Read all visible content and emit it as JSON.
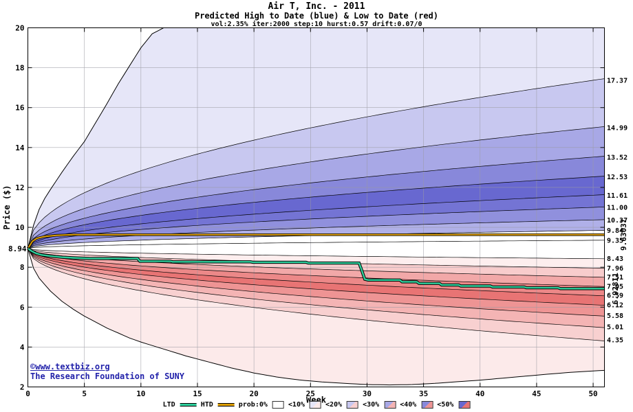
{
  "header": {
    "title": "Air T, Inc. - 2011",
    "subtitle": "Predicted High to Date (blue) &  Low to Date (red)",
    "params": "vol:2.35% iter:2000 step:10 hurst:0.57 drift:0.07/0"
  },
  "watermark": {
    "line1": "©www.textbiz.org",
    "line2": "The Research Foundation of SUNY",
    "color": "#2222aa"
  },
  "chart_data": {
    "type": "area",
    "title": "Air T, Inc. - 2011",
    "subtitle": "Predicted High to Date (blue) & Low to Date (red)",
    "xlabel": "Week",
    "ylabel": "Price ($)",
    "xlim": [
      0,
      51
    ],
    "ylim": [
      2,
      20
    ],
    "xticks": [
      0,
      5,
      10,
      15,
      20,
      25,
      30,
      35,
      40,
      45,
      50
    ],
    "yticks": [
      2,
      4,
      6,
      8,
      10,
      12,
      14,
      16,
      18,
      20
    ],
    "grid": true,
    "start_price": 8.94,
    "start_label": "8.94",
    "spread_exponent": 0.48,
    "high_boundaries": [
      {
        "end": 9.35,
        "label": "9.35"
      },
      {
        "end": 9.84,
        "label": "9.84"
      },
      {
        "end": 10.37,
        "label": "10.37"
      },
      {
        "end": 11.0,
        "label": "11.00"
      },
      {
        "end": 11.61,
        "label": "11.61"
      },
      {
        "end": 12.53,
        "label": "12.53"
      },
      {
        "end": 13.52,
        "label": "13.52"
      },
      {
        "end": 14.99,
        "label": "14.99"
      },
      {
        "end": 17.37,
        "label": "17.37"
      }
    ],
    "high_band_colors": [
      "#ffffff",
      "#b0b0e8",
      "#9090dd",
      "#7474d4",
      "#6868d0",
      "#8888da",
      "#a8a8e6",
      "#c8c8f0",
      "#e6e6f8"
    ],
    "high_envelope": [
      [
        0,
        8.94
      ],
      [
        0.5,
        10.1
      ],
      [
        1,
        10.9
      ],
      [
        1.5,
        11.45
      ],
      [
        2,
        11.9
      ],
      [
        3,
        12.75
      ],
      [
        4,
        13.55
      ],
      [
        5,
        14.3
      ],
      [
        6,
        15.25
      ],
      [
        7,
        16.2
      ],
      [
        8,
        17.2
      ],
      [
        9,
        18.1
      ],
      [
        10,
        19.0
      ],
      [
        11,
        19.7
      ],
      [
        12,
        20.0
      ],
      [
        51,
        20.0
      ]
    ],
    "low_boundaries": [
      {
        "end": 8.43,
        "label": "8.43"
      },
      {
        "end": 7.96,
        "label": "7.96"
      },
      {
        "end": 7.51,
        "label": "7.51"
      },
      {
        "end": 7.05,
        "label": "7.05"
      },
      {
        "end": 6.59,
        "label": "6.59"
      },
      {
        "end": 6.12,
        "label": "6.12"
      },
      {
        "end": 5.58,
        "label": "5.58"
      },
      {
        "end": 5.01,
        "label": "5.01"
      },
      {
        "end": 4.35,
        "label": "4.35"
      }
    ],
    "low_band_colors": [
      "#fdeeee",
      "#f8cccc",
      "#f2a8a8",
      "#ec8888",
      "#e87474",
      "#ee9494",
      "#f4b4b4",
      "#f8d0d0",
      "#fceaea"
    ],
    "low_envelope": [
      [
        0,
        8.94
      ],
      [
        0.5,
        7.95
      ],
      [
        1,
        7.45
      ],
      [
        2,
        6.8
      ],
      [
        3,
        6.3
      ],
      [
        4,
        5.9
      ],
      [
        5,
        5.55
      ],
      [
        6,
        5.25
      ],
      [
        7,
        4.95
      ],
      [
        8,
        4.7
      ],
      [
        9,
        4.45
      ],
      [
        10,
        4.25
      ],
      [
        12,
        3.9
      ],
      [
        14,
        3.55
      ],
      [
        16,
        3.25
      ],
      [
        18,
        2.95
      ],
      [
        20,
        2.7
      ],
      [
        22,
        2.5
      ],
      [
        24,
        2.35
      ],
      [
        26,
        2.25
      ],
      [
        28,
        2.18
      ],
      [
        30,
        2.12
      ],
      [
        32,
        2.1
      ],
      [
        34,
        2.12
      ],
      [
        36,
        2.18
      ],
      [
        38,
        2.26
      ],
      [
        40,
        2.34
      ],
      [
        42,
        2.44
      ],
      [
        44,
        2.54
      ],
      [
        46,
        2.64
      ],
      [
        48,
        2.73
      ],
      [
        50,
        2.8
      ],
      [
        51,
        2.83
      ]
    ],
    "htd": {
      "label": "HTD",
      "color": "#dfa000",
      "end_label": "9.63037",
      "end_label_color": "#0aa00a",
      "points": [
        [
          0,
          8.94
        ],
        [
          0.4,
          9.3
        ],
        [
          0.8,
          9.45
        ],
        [
          1.5,
          9.54
        ],
        [
          2.5,
          9.6
        ],
        [
          4,
          9.63
        ],
        [
          51,
          9.63
        ]
      ]
    },
    "ltd": {
      "label": "LTD",
      "color": "#2ecf9c",
      "end_label": "6.92811",
      "end_label_color": "#0aa00a",
      "points": [
        [
          0,
          8.94
        ],
        [
          0.3,
          8.82
        ],
        [
          0.7,
          8.7
        ],
        [
          1.2,
          8.62
        ],
        [
          2,
          8.56
        ],
        [
          3,
          8.5
        ],
        [
          4,
          8.47
        ],
        [
          5.5,
          8.44
        ],
        [
          9.7,
          8.44
        ],
        [
          9.9,
          8.3
        ],
        [
          12.6,
          8.3
        ],
        [
          12.8,
          8.27
        ],
        [
          19.7,
          8.27
        ],
        [
          19.9,
          8.25
        ],
        [
          24.6,
          8.25
        ],
        [
          24.8,
          8.21
        ],
        [
          29.3,
          8.21
        ],
        [
          29.5,
          7.9
        ],
        [
          29.8,
          7.4
        ],
        [
          30.1,
          7.36
        ],
        [
          32.9,
          7.36
        ],
        [
          33.1,
          7.27
        ],
        [
          34.4,
          7.27
        ],
        [
          34.6,
          7.19
        ],
        [
          36.4,
          7.19
        ],
        [
          36.6,
          7.11
        ],
        [
          38.1,
          7.11
        ],
        [
          38.3,
          7.06
        ],
        [
          40.9,
          7.06
        ],
        [
          41.1,
          7.01
        ],
        [
          43.9,
          7.01
        ],
        [
          44.1,
          6.97
        ],
        [
          46.9,
          6.97
        ],
        [
          47.1,
          6.93
        ],
        [
          51,
          6.93
        ]
      ]
    },
    "legend": [
      {
        "label": "LTD",
        "swatch": "line",
        "color": "#2ecf9c"
      },
      {
        "label": "HTD",
        "swatch": "line",
        "color": "#dfa000"
      },
      {
        "label": "prob:0%",
        "swatch": "box",
        "blue": "#ffffff",
        "red": "#ffffff"
      },
      {
        "label": "<10%",
        "swatch": "box",
        "blue": "#e6e6f8",
        "red": "#fceaea"
      },
      {
        "label": "<20%",
        "swatch": "box",
        "blue": "#c8c8f0",
        "red": "#f8d0d0"
      },
      {
        "label": "<30%",
        "swatch": "box",
        "blue": "#a8a8e6",
        "red": "#f4b4b4"
      },
      {
        "label": "<40%",
        "swatch": "box",
        "blue": "#8888da",
        "red": "#ee9494"
      },
      {
        "label": "<50%",
        "swatch": "box",
        "blue": "#6868d0",
        "red": "#e87474"
      }
    ]
  }
}
